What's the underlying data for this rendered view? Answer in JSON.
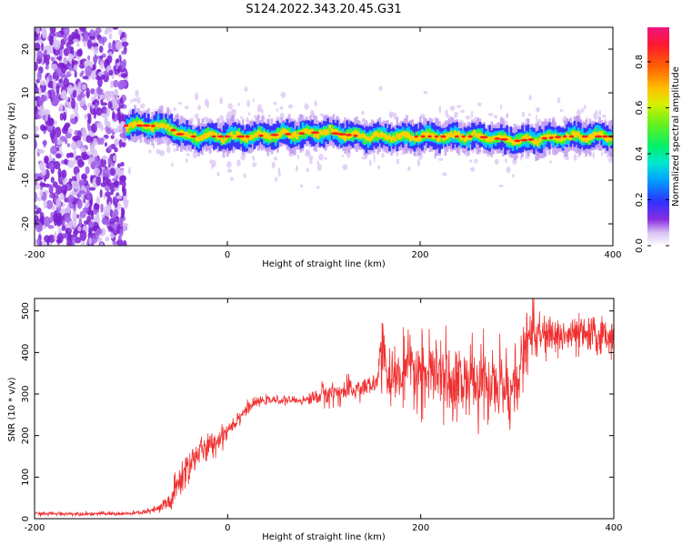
{
  "title": "S124.2022.343.20.45.G31",
  "chart_data": [
    {
      "type": "heatmap",
      "xlabel": "Height of straight line (km)",
      "ylabel": "Frequency (Hz)",
      "xlim": [
        -200,
        400
      ],
      "ylim": [
        -25,
        25
      ],
      "xticks": [
        -200,
        0,
        200,
        400
      ],
      "yticks": [
        -20,
        -10,
        0,
        10,
        20
      ],
      "colorbar": {
        "label": "Normalized spectral amplitude",
        "range": [
          0,
          0.95
        ],
        "ticks": [
          "0.0",
          "0.2",
          "0.4",
          "0.6",
          "0.8"
        ],
        "tick_values": [
          0,
          0.2,
          0.4,
          0.6,
          0.8
        ],
        "colors": [
          "#ffffff",
          "#c6a0f2",
          "#7a1ed2",
          "#2a2aff",
          "#00c8ff",
          "#00f0a0",
          "#3cf03c",
          "#c8f000",
          "#ffd000",
          "#ff8000",
          "#ff2020",
          "#f01478"
        ]
      },
      "ridge": {
        "description_points": [
          [
            -110,
            2.5
          ],
          [
            -80,
            2.5
          ],
          [
            -60,
            2
          ],
          [
            -45,
            0
          ],
          [
            20,
            0
          ],
          [
            60,
            0.5
          ],
          [
            100,
            1
          ],
          [
            140,
            0
          ],
          [
            200,
            0
          ],
          [
            260,
            0
          ],
          [
            300,
            -1
          ],
          [
            350,
            0
          ],
          [
            400,
            0
          ]
        ]
      },
      "noise_region_x": [
        -200,
        -105
      ]
    },
    {
      "type": "line",
      "xlabel": "Height of straight line (km)",
      "ylabel": "SNR (10 * v/v)",
      "xlim": [
        -200,
        400
      ],
      "ylim": [
        0,
        530
      ],
      "xticks": [
        -200,
        0,
        200,
        400
      ],
      "yticks": [
        0,
        100,
        200,
        300,
        400,
        500
      ],
      "color": "#f03030",
      "series": [
        {
          "x": [
            -200,
            -150,
            -100,
            -80,
            -70,
            -60,
            -55,
            -50,
            -45,
            -40,
            -30,
            -20,
            -10,
            0,
            10,
            20,
            30,
            40,
            60,
            80,
            100,
            120,
            140,
            155,
            160,
            165,
            170,
            190,
            220,
            250,
            280,
            300,
            310,
            315,
            320,
            340,
            360,
            380,
            400
          ],
          "y": [
            12,
            12,
            12,
            18,
            25,
            40,
            60,
            90,
            110,
            130,
            160,
            170,
            190,
            215,
            240,
            265,
            280,
            285,
            285,
            285,
            300,
            305,
            315,
            325,
            480,
            330,
            340,
            355,
            340,
            330,
            320,
            315,
            440,
            460,
            440,
            440,
            440,
            440,
            440
          ],
          "noise_amplitude": [
            4,
            4,
            4,
            6,
            12,
            25,
            35,
            40,
            40,
            40,
            30,
            28,
            25,
            22,
            18,
            12,
            10,
            8,
            8,
            8,
            25,
            25,
            25,
            20,
            20,
            40,
            60,
            70,
            75,
            80,
            80,
            80,
            60,
            55,
            45,
            40,
            40,
            40,
            40
          ]
        }
      ]
    }
  ]
}
